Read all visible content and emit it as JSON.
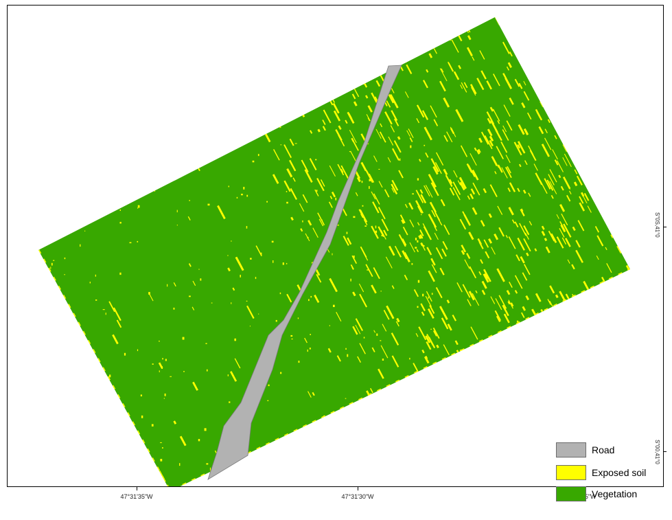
{
  "legend": {
    "items": [
      {
        "label": "Road",
        "color": "#b2b2b2"
      },
      {
        "label": "Exposed soil",
        "color": "#ffff00"
      },
      {
        "label": "Vegetation",
        "color": "#38a800"
      }
    ]
  },
  "axes": {
    "longitude_labels": [
      "47°31'35\"W",
      "47°31'30\"W",
      "47°31'25\"W"
    ],
    "latitude_labels": [
      "S\"0S,41°0",
      "S\"00,41°0"
    ]
  },
  "colors": {
    "vegetation": "#38a800",
    "soil": "#ffff00",
    "road": "#b2b2b2",
    "frame": "#000000"
  }
}
